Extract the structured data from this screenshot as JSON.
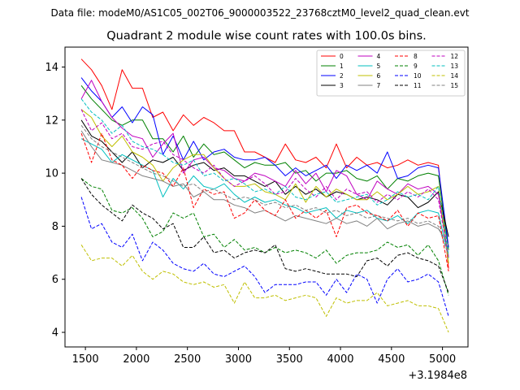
{
  "header": {
    "datafile": "Data file: modeM0/AS1C05_002T06_9000003522_23768cztM0_level2_quad_clean.evt"
  },
  "chart_data": {
    "type": "line",
    "title": "Quadrant 2 module wise count rates with 100.0s bins.",
    "xlabel": "",
    "ylabel": "",
    "x_offset_label": "+3.1984e8",
    "xlim": [
      1300,
      5250
    ],
    "ylim": [
      3.45,
      14.75
    ],
    "xticks": [
      1500,
      2000,
      2500,
      3000,
      3500,
      4000,
      4500,
      5000
    ],
    "yticks": [
      4,
      6,
      8,
      10,
      12,
      14
    ],
    "x": [
      1460,
      1560,
      1660,
      1760,
      1860,
      1960,
      2060,
      2160,
      2260,
      2360,
      2460,
      2560,
      2660,
      2760,
      2860,
      2960,
      3060,
      3160,
      3260,
      3360,
      3460,
      3560,
      3660,
      3760,
      3860,
      3960,
      4060,
      4160,
      4260,
      4360,
      4460,
      4560,
      4660,
      4760,
      4860,
      4960,
      5060
    ],
    "legend": {
      "location": "upper right",
      "columns": 4
    },
    "series": [
      {
        "name": "0",
        "color": "#ff0000",
        "dash": "solid",
        "values": [
          14.3,
          13.9,
          13.3,
          12.4,
          13.9,
          13.2,
          13.2,
          12.1,
          12.3,
          11.6,
          12.2,
          11.8,
          12.1,
          11.9,
          11.6,
          11.6,
          10.8,
          10.8,
          10.6,
          10.4,
          11.1,
          10.5,
          10.4,
          10.6,
          10.2,
          11.1,
          10.2,
          10.6,
          10.3,
          10.4,
          10.2,
          10.3,
          10.5,
          10.3,
          10.4,
          10.3,
          6.4
        ]
      },
      {
        "name": "1",
        "color": "#008000",
        "dash": "solid",
        "values": [
          13.3,
          12.8,
          12.4,
          12.0,
          11.8,
          12.0,
          12.0,
          11.3,
          11.3,
          10.8,
          11.4,
          10.6,
          11.1,
          10.7,
          10.8,
          10.5,
          10.2,
          10.4,
          10.3,
          10.3,
          10.4,
          10.0,
          10.1,
          9.7,
          10.0,
          10.0,
          10.1,
          9.8,
          9.7,
          9.9,
          9.4,
          9.8,
          9.7,
          9.9,
          10.0,
          9.9,
          7.1
        ]
      },
      {
        "name": "2",
        "color": "#0000ff",
        "dash": "solid",
        "values": [
          13.6,
          13.1,
          12.7,
          12.1,
          12.5,
          11.9,
          12.5,
          12.2,
          10.7,
          11.4,
          10.5,
          11.2,
          10.5,
          10.8,
          10.9,
          10.6,
          10.5,
          10.5,
          10.6,
          10.3,
          9.9,
          10.2,
          9.9,
          10.1,
          10.3,
          9.8,
          10.3,
          10.1,
          10.3,
          10.0,
          10.8,
          9.8,
          9.9,
          10.2,
          10.3,
          10.2,
          7.2
        ]
      },
      {
        "name": "3",
        "color": "#000000",
        "dash": "solid",
        "values": [
          12.0,
          11.4,
          11.2,
          10.8,
          10.4,
          10.8,
          10.2,
          10.5,
          10.4,
          10.6,
          10.1,
          10.3,
          10.4,
          10.1,
          10.2,
          9.9,
          9.9,
          9.7,
          9.5,
          9.7,
          9.2,
          9.5,
          9.2,
          9.4,
          9.1,
          9.3,
          9.2,
          9.0,
          9.1,
          9.0,
          8.8,
          9.2,
          9.1,
          8.7,
          8.9,
          9.3,
          7.6
        ]
      },
      {
        "name": "4",
        "color": "#bf00bf",
        "dash": "solid",
        "values": [
          12.8,
          13.5,
          12.7,
          12.1,
          11.7,
          11.4,
          11.3,
          10.6,
          11.1,
          11.5,
          10.0,
          10.5,
          10.6,
          10.2,
          10.1,
          9.8,
          9.7,
          10.0,
          9.9,
          9.7,
          9.5,
          10.1,
          9.6,
          10.0,
          9.3,
          10.1,
          9.9,
          9.2,
          9.0,
          9.7,
          9.4,
          9.2,
          9.6,
          9.4,
          9.5,
          9.2,
          6.8
        ]
      },
      {
        "name": "5",
        "color": "#00bfbf",
        "dash": "solid",
        "values": [
          11.3,
          11.1,
          10.9,
          10.4,
          10.7,
          10.5,
          10.3,
          10.1,
          9.1,
          9.8,
          9.4,
          9.9,
          9.5,
          9.4,
          9.6,
          9.2,
          8.9,
          9.1,
          8.9,
          9.0,
          8.8,
          8.7,
          8.5,
          8.6,
          8.7,
          8.3,
          8.6,
          8.5,
          8.6,
          8.3,
          8.2,
          8.4,
          8.1,
          8.5,
          8.6,
          8.5,
          6.8
        ]
      },
      {
        "name": "6",
        "color": "#bfbf00",
        "dash": "solid",
        "values": [
          12.4,
          12.1,
          11.4,
          11.0,
          11.4,
          10.8,
          10.6,
          10.3,
          9.7,
          10.2,
          10.5,
          10.7,
          10.7,
          10.2,
          9.8,
          9.5,
          9.5,
          9.6,
          9.3,
          9.2,
          9.0,
          9.6,
          8.9,
          9.5,
          9.1,
          9.4,
          9.2,
          9.0,
          9.0,
          9.3,
          9.0,
          9.2,
          9.5,
          9.2,
          9.3,
          9.5,
          6.6
        ]
      },
      {
        "name": "7",
        "color": "#808080",
        "dash": "solid",
        "values": [
          11.6,
          11.0,
          10.5,
          10.4,
          10.3,
          10.1,
          9.9,
          9.8,
          9.7,
          9.5,
          9.6,
          9.1,
          9.3,
          9.0,
          9.0,
          8.8,
          8.7,
          8.5,
          8.6,
          8.4,
          8.2,
          8.4,
          8.3,
          8.2,
          8.1,
          8.3,
          8.1,
          8.2,
          8.0,
          8.3,
          7.9,
          8.1,
          8.2,
          8.0,
          8.1,
          7.9,
          7.3
        ]
      },
      {
        "name": "8",
        "color": "#ff0000",
        "dash": "dashed",
        "values": [
          11.5,
          10.4,
          11.5,
          10.5,
          10.3,
          9.8,
          10.3,
          10.1,
          10.0,
          9.5,
          10.2,
          8.7,
          9.4,
          9.2,
          9.3,
          8.3,
          8.5,
          9.0,
          8.6,
          8.4,
          9.0,
          8.3,
          8.6,
          8.3,
          8.6,
          7.6,
          8.7,
          8.8,
          8.5,
          8.4,
          8.2,
          8.6,
          8.0,
          8.5,
          8.3,
          8.4,
          6.3
        ]
      },
      {
        "name": "9",
        "color": "#008000",
        "dash": "dashed",
        "values": [
          9.8,
          9.5,
          9.4,
          8.6,
          8.5,
          8.7,
          8.3,
          7.6,
          7.8,
          8.5,
          8.3,
          8.5,
          7.6,
          7.7,
          7.2,
          7.5,
          7.1,
          7.2,
          7.0,
          7.2,
          7.0,
          7.1,
          7.0,
          6.8,
          7.1,
          6.6,
          6.9,
          7.0,
          7.0,
          7.1,
          7.4,
          7.2,
          7.3,
          6.9,
          7.3,
          6.7,
          5.4
        ]
      },
      {
        "name": "10",
        "color": "#0000ff",
        "dash": "dashed",
        "values": [
          9.1,
          7.9,
          8.1,
          7.4,
          7.2,
          7.7,
          6.7,
          7.4,
          7.1,
          6.6,
          6.4,
          6.3,
          6.6,
          6.2,
          6.1,
          6.3,
          6.5,
          6.1,
          5.5,
          5.8,
          5.8,
          5.8,
          5.9,
          5.9,
          5.4,
          6.0,
          5.5,
          6.2,
          6.0,
          5.1,
          6.0,
          6.4,
          5.9,
          6.0,
          6.2,
          5.9,
          4.6
        ]
      },
      {
        "name": "11",
        "color": "#000000",
        "dash": "dashed",
        "values": [
          9.8,
          9.2,
          8.8,
          8.5,
          8.2,
          8.8,
          8.5,
          8.3,
          7.9,
          8.1,
          7.2,
          7.2,
          7.6,
          7.0,
          7.1,
          6.8,
          7.0,
          7.1,
          7.0,
          7.3,
          6.4,
          6.3,
          6.4,
          6.3,
          6.2,
          6.2,
          6.2,
          6.1,
          6.7,
          6.8,
          6.5,
          6.9,
          7.0,
          6.8,
          6.7,
          6.5,
          5.5
        ]
      },
      {
        "name": "12",
        "color": "#bf00bf",
        "dash": "dashed",
        "values": [
          12.4,
          11.6,
          11.9,
          11.3,
          11.5,
          11.0,
          10.9,
          11.1,
          11.2,
          10.7,
          10.5,
          10.2,
          10.0,
          10.3,
          9.8,
          9.5,
          9.7,
          9.9,
          9.6,
          9.2,
          9.3,
          9.8,
          9.4,
          9.1,
          9.5,
          9.0,
          9.4,
          9.2,
          9.3,
          8.9,
          9.2,
          9.0,
          9.3,
          9.1,
          9.4,
          9.0,
          6.8
        ]
      },
      {
        "name": "13",
        "color": "#00bfbf",
        "dash": "dashed",
        "values": [
          12.8,
          12.3,
          12.0,
          11.5,
          11.8,
          11.2,
          11.0,
          10.9,
          10.7,
          10.4,
          10.3,
          10.5,
          9.9,
          10.0,
          9.7,
          9.8,
          9.6,
          9.3,
          9.4,
          9.2,
          9.5,
          9.1,
          9.0,
          9.2,
          9.3,
          8.9,
          9.0,
          9.1,
          9.2,
          8.8,
          9.0,
          9.3,
          9.1,
          9.2,
          9.0,
          9.5,
          6.9
        ]
      },
      {
        "name": "14",
        "color": "#bfbf00",
        "dash": "dashed",
        "values": [
          7.3,
          6.7,
          6.8,
          6.8,
          6.5,
          6.9,
          6.3,
          6.0,
          6.3,
          6.2,
          5.9,
          5.8,
          5.9,
          5.7,
          5.8,
          5.1,
          5.9,
          5.3,
          5.3,
          5.4,
          5.2,
          5.3,
          5.4,
          5.3,
          4.6,
          5.3,
          5.1,
          5.2,
          5.2,
          5.5,
          5.0,
          5.1,
          5.2,
          5.0,
          5.0,
          4.9,
          4.0
        ]
      },
      {
        "name": "15",
        "color": "#808080",
        "dash": "dashed",
        "values": [
          11.8,
          11.3,
          11.0,
          10.8,
          10.6,
          10.4,
          10.2,
          10.0,
          9.9,
          9.7,
          9.5,
          9.6,
          9.3,
          9.4,
          9.2,
          9.0,
          9.1,
          9.0,
          8.8,
          8.9,
          8.7,
          8.8,
          8.6,
          8.7,
          8.5,
          8.6,
          8.4,
          8.5,
          8.3,
          8.4,
          8.3,
          8.2,
          8.3,
          8.1,
          8.2,
          8.0,
          6.9
        ]
      }
    ]
  }
}
